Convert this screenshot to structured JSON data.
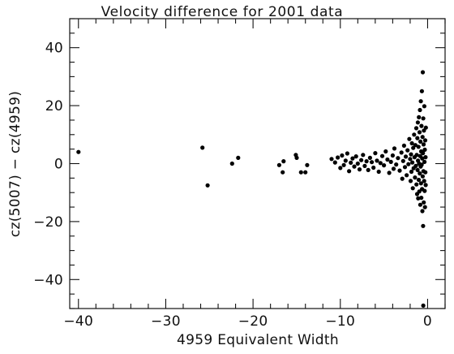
{
  "chart_data": {
    "type": "scatter",
    "title": "Velocity difference for 2001 data",
    "xlabel": "4959 Equivalent Width",
    "ylabel": "cz(5007) − cz(4959)",
    "xlim": [
      -41,
      2
    ],
    "ylim": [
      -50,
      50
    ],
    "xticks": [
      -40,
      -30,
      -20,
      -10,
      0
    ],
    "yticks": [
      -40,
      -20,
      0,
      20,
      40
    ],
    "xtick_labels": [
      "−40",
      "−30",
      "−20",
      "−10",
      "0"
    ],
    "ytick_labels": [
      "−40",
      "−20",
      "0",
      "20",
      "40"
    ],
    "grid": false,
    "legend": "none",
    "points": [
      [
        -40,
        4
      ],
      [
        -25.8,
        5.5
      ],
      [
        -25.2,
        -7.5
      ],
      [
        -22.4,
        0
      ],
      [
        -21.7,
        2
      ],
      [
        -17,
        -0.5
      ],
      [
        -16.5,
        0.8
      ],
      [
        -16.6,
        -3
      ],
      [
        -15.1,
        3
      ],
      [
        -15,
        2
      ],
      [
        -14.5,
        -3
      ],
      [
        -14,
        -3
      ],
      [
        -13.8,
        -0.5
      ],
      [
        -11,
        1.6
      ],
      [
        -10.6,
        0.4
      ],
      [
        -10.3,
        2.1
      ],
      [
        -10,
        -1.5
      ],
      [
        -9.8,
        2.8
      ],
      [
        -9.6,
        -0.5
      ],
      [
        -9.4,
        1
      ],
      [
        -9.2,
        3.5
      ],
      [
        -9,
        -2.6
      ],
      [
        -8.8,
        0.3
      ],
      [
        -8.6,
        1.8
      ],
      [
        -8.4,
        -1
      ],
      [
        -8.2,
        2.5
      ],
      [
        -8,
        0
      ],
      [
        -7.8,
        -2
      ],
      [
        -7.6,
        1.2
      ],
      [
        -7.4,
        3
      ],
      [
        -7.2,
        -0.8
      ],
      [
        -7,
        0.8
      ],
      [
        -6.8,
        -2.2
      ],
      [
        -6.6,
        2
      ],
      [
        -6.4,
        0.5
      ],
      [
        -6.2,
        -1.4
      ],
      [
        -6,
        3.6
      ],
      [
        -5.8,
        1
      ],
      [
        -5.6,
        -2.8
      ],
      [
        -5.4,
        0.2
      ],
      [
        -5.2,
        2.6
      ],
      [
        -5,
        -0.6
      ],
      [
        -4.8,
        4.2
      ],
      [
        -4.6,
        1.4
      ],
      [
        -4.4,
        -3.2
      ],
      [
        -4.2,
        0.6
      ],
      [
        -4,
        2.8
      ],
      [
        -3.9,
        -1.8
      ],
      [
        -3.8,
        5.2
      ],
      [
        -3.6,
        -0.3
      ],
      [
        -3.4,
        1.9
      ],
      [
        -3.2,
        -2.4
      ],
      [
        -3,
        3.8
      ],
      [
        -2.9,
        -5.2
      ],
      [
        -2.8,
        0.9
      ],
      [
        -2.7,
        6.2
      ],
      [
        -2.6,
        -1.2
      ],
      [
        -2.5,
        2.4
      ],
      [
        -2.4,
        -4
      ],
      [
        -2.3,
        4.6
      ],
      [
        -2.2,
        -0.2
      ],
      [
        -2.1,
        8.5
      ],
      [
        -2,
        1.6
      ],
      [
        -1.95,
        -6
      ],
      [
        -1.9,
        3.2
      ],
      [
        -1.85,
        -2.8
      ],
      [
        -1.8,
        7
      ],
      [
        -1.75,
        0.4
      ],
      [
        -1.7,
        -8.5
      ],
      [
        -1.65,
        5.4
      ],
      [
        -1.6,
        -1.6
      ],
      [
        -1.55,
        10
      ],
      [
        -1.5,
        2.2
      ],
      [
        -1.45,
        -4.8
      ],
      [
        -1.4,
        6.4
      ],
      [
        -1.35,
        -0.8
      ],
      [
        -1.3,
        12.2
      ],
      [
        -1.28,
        -7.2
      ],
      [
        -1.25,
        3
      ],
      [
        -1.2,
        -10.5
      ],
      [
        -1.18,
        8.8
      ],
      [
        -1.15,
        -2.2
      ],
      [
        -1.12,
        14.2
      ],
      [
        -1.1,
        1
      ],
      [
        -1.08,
        -12
      ],
      [
        -1.05,
        5.8
      ],
      [
        -1.02,
        -5.6
      ],
      [
        -1,
        16
      ],
      [
        -0.98,
        0
      ],
      [
        -0.95,
        -9.6
      ],
      [
        -0.93,
        10.8
      ],
      [
        -0.9,
        -3.4
      ],
      [
        -0.88,
        18.5
      ],
      [
        -0.86,
        2.6
      ],
      [
        -0.84,
        -14.2
      ],
      [
        -0.82,
        7.6
      ],
      [
        -0.8,
        -1
      ],
      [
        -0.78,
        21.5
      ],
      [
        -0.76,
        -6.8
      ],
      [
        -0.74,
        4.2
      ],
      [
        -0.72,
        -11.8
      ],
      [
        -0.7,
        13
      ],
      [
        -0.68,
        -0.4
      ],
      [
        -0.66,
        25
      ],
      [
        -0.64,
        -8.8
      ],
      [
        -0.62,
        1.8
      ],
      [
        -0.6,
        -16.4
      ],
      [
        -0.58,
        9.2
      ],
      [
        -0.56,
        -4.4
      ],
      [
        -0.55,
        31.5
      ],
      [
        -0.54,
        3.6
      ],
      [
        -0.52,
        -21.5
      ],
      [
        -0.5,
        15.6
      ],
      [
        -0.48,
        -2.6
      ],
      [
        -0.46,
        6.6
      ],
      [
        -0.44,
        -13.4
      ],
      [
        -0.42,
        11.4
      ],
      [
        -0.4,
        -6
      ],
      [
        -0.38,
        19.8
      ],
      [
        -0.36,
        0.6
      ],
      [
        -0.34,
        -9.4
      ],
      [
        -0.32,
        4.8
      ],
      [
        -0.3,
        -15
      ],
      [
        -0.28,
        8
      ],
      [
        -0.26,
        -3
      ],
      [
        -0.24,
        2.2
      ],
      [
        -0.22,
        -7.4
      ],
      [
        -0.2,
        12.4
      ],
      [
        -0.5,
        -49
      ]
    ]
  }
}
